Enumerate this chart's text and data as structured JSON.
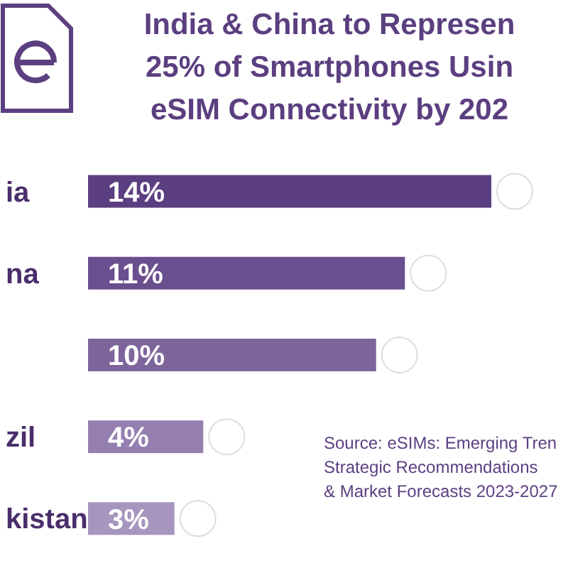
{
  "chart_data": {
    "type": "bar",
    "orientation": "horizontal",
    "title": "India & China to Represen\n25% of Smartphones Usin\neSIM Connectivity by 202",
    "categories": [
      "ia",
      "na",
      null,
      "zil",
      "kistan"
    ],
    "values": [
      14,
      11,
      10,
      4,
      3
    ],
    "colors": [
      "#5b3f80",
      "#6a4f8e",
      "#7d659c",
      "#957fb0",
      "#a695bd"
    ],
    "value_labels": [
      "14%",
      "11%",
      "10%",
      "4%",
      "3%"
    ],
    "annotations": [
      "Source: eSIMs: Emerging Tren\nStrategic Recommendations\n& Market Forecasts 2023-2027"
    ],
    "legend": false
  }
}
